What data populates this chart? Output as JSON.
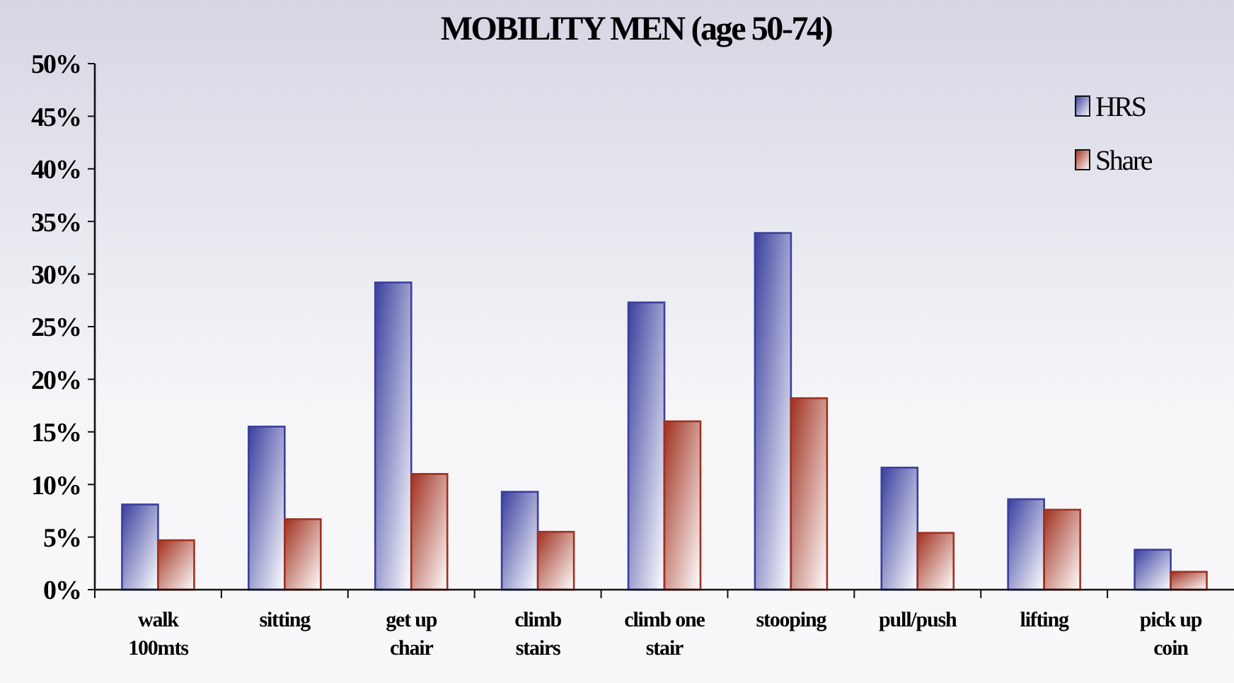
{
  "chart_data": {
    "type": "bar",
    "title": "MOBILITY MEN (age 50-74)",
    "categories": [
      "walk 100mts",
      "sitting",
      "get up chair",
      "climb stairs",
      "climb one stair",
      "stooping",
      "pull/push",
      "lifting",
      "pick up coin"
    ],
    "series": [
      {
        "name": "HRS",
        "color": "#3a3f9e",
        "values": [
          8.1,
          15.5,
          29.2,
          9.3,
          27.3,
          33.9,
          11.6,
          8.6,
          3.8
        ]
      },
      {
        "name": "Share",
        "color": "#a0301f",
        "values": [
          4.7,
          6.7,
          11.0,
          5.5,
          16.0,
          18.2,
          5.4,
          7.6,
          1.7
        ]
      }
    ],
    "ylim": [
      0,
      50
    ],
    "yticks": [
      {
        "value": 0,
        "label": "0%"
      },
      {
        "value": 5,
        "label": "5%"
      },
      {
        "value": 10,
        "label": "10%"
      },
      {
        "value": 15,
        "label": "15%"
      },
      {
        "value": 20,
        "label": "20%"
      },
      {
        "value": 25,
        "label": "25%"
      },
      {
        "value": 30,
        "label": "30%"
      },
      {
        "value": 35,
        "label": "35%"
      },
      {
        "value": 40,
        "label": "40%"
      },
      {
        "value": 45,
        "label": "45%"
      },
      {
        "value": 50,
        "label": "50%"
      }
    ],
    "grid": false,
    "legend": "top right"
  }
}
